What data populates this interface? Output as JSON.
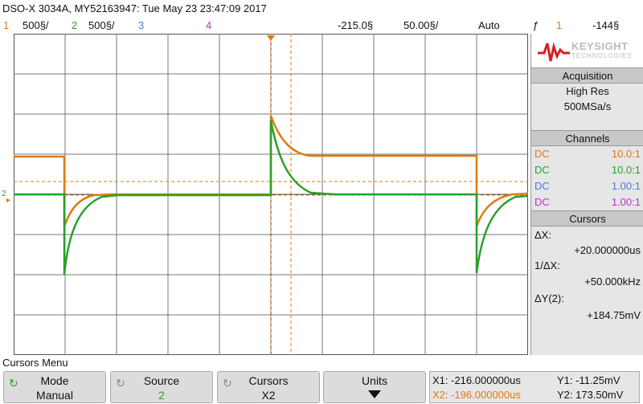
{
  "header": {
    "title": "DSO-X 3034A, MY52163947: Tue May 23 23:47:09 2017"
  },
  "status": {
    "ch1_num": "1",
    "ch1_scale": "500§/",
    "ch2_num": "2",
    "ch2_scale": "500§/",
    "ch3_num": "3",
    "ch4_num": "4",
    "delay": "-215.0§",
    "timebase": "50.00§/",
    "trigger_mode": "Auto",
    "trigger_icon": "ƒ",
    "trigger_source": "1",
    "trigger_level": "-144§",
    "colors": {
      "ch1": "#e07a10",
      "ch2": "#2aa02a",
      "ch3": "#4a7cd0",
      "ch4": "#c030c0"
    }
  },
  "panel": {
    "logo": "KEYSIGHT",
    "logo_sub": "TECHNOLOGIES",
    "acq_head": "Acquisition",
    "acq_mode": "High Res",
    "acq_rate": "500MSa/s",
    "chan_head": "Channels",
    "channels": [
      {
        "coupling": "DC",
        "probe": "10.0:1"
      },
      {
        "coupling": "DC",
        "probe": "10.0:1"
      },
      {
        "coupling": "DC",
        "probe": "1.00:1"
      },
      {
        "coupling": "DC",
        "probe": "1.00:1"
      }
    ],
    "cur_head": "Cursors",
    "dx_label": "ΔX:",
    "dx_value": "+20.000000us",
    "inv_label": "1/ΔX:",
    "inv_value": "+50.000kHz",
    "dy_label": "ΔY(2):",
    "dy_value": "+184.75mV"
  },
  "menu": {
    "title": "Cursors Menu",
    "mode_label": "Mode",
    "mode_value": "Manual",
    "source_label": "Source",
    "source_value": "2",
    "cursors_label": "Cursors",
    "cursors_value": "X2",
    "units_label": "Units",
    "units_icon": "down-arrow-icon",
    "x1": "X1: -216.000000us",
    "x2": "X2: -196.000000us",
    "y1": "Y1: -11.25mV",
    "y2": "Y2: 173.50mV"
  }
}
